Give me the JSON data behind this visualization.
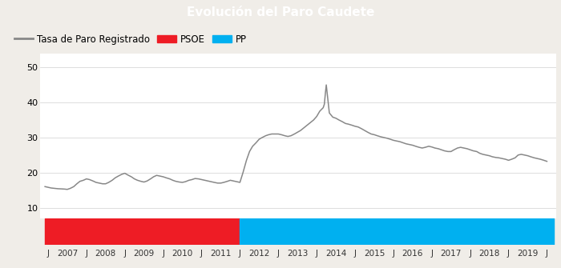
{
  "title": "Evolución del Paro Caudete",
  "title_bg": "#4e7fc4",
  "title_color": "#ffffff",
  "ylabel_values": [
    10,
    20,
    30,
    40,
    50
  ],
  "ylim": [
    7,
    54
  ],
  "legend_line_label": "Tasa de Paro Registrado",
  "legend_psoe_label": "PSOE",
  "legend_pp_label": "PP",
  "psoe_color": "#ee1c25",
  "pp_color": "#00b0f0",
  "line_color": "#888888",
  "background_color": "#ffffff",
  "grid_color": "#d0d0d0",
  "outer_bg": "#f0ede8",
  "psoe_start": 2006.42,
  "psoe_end": 2011.5,
  "pp_start": 2011.5,
  "pp_end": 2019.67,
  "xlim_left": 2006.3,
  "xlim_right": 2019.75,
  "x_tick_positions": [
    2006.5,
    2007.0,
    2007.5,
    2008.0,
    2008.5,
    2009.0,
    2009.5,
    2010.0,
    2010.5,
    2011.0,
    2011.5,
    2012.0,
    2012.5,
    2013.0,
    2013.5,
    2014.0,
    2014.5,
    2015.0,
    2015.5,
    2016.0,
    2016.5,
    2017.0,
    2017.5,
    2018.0,
    2018.5,
    2019.0,
    2019.5
  ],
  "x_tick_labels": [
    "J",
    "2007",
    "J",
    "2008",
    "J",
    "2009",
    "J",
    "2010",
    "J",
    "2011",
    "J",
    "2012",
    "J",
    "2013",
    "J",
    "2014",
    "J",
    "2015",
    "J",
    "2016",
    "J",
    "2017",
    "J",
    "2018",
    "J",
    "2019",
    "J"
  ],
  "series": [
    [
      2006.42,
      16.0
    ],
    [
      2006.58,
      15.6
    ],
    [
      2006.75,
      15.4
    ],
    [
      2006.92,
      15.3
    ],
    [
      2007.0,
      15.2
    ],
    [
      2007.08,
      15.5
    ],
    [
      2007.17,
      16.0
    ],
    [
      2007.25,
      16.8
    ],
    [
      2007.33,
      17.5
    ],
    [
      2007.42,
      17.8
    ],
    [
      2007.5,
      18.2
    ],
    [
      2007.58,
      18.0
    ],
    [
      2007.67,
      17.6
    ],
    [
      2007.75,
      17.2
    ],
    [
      2007.83,
      17.0
    ],
    [
      2007.92,
      16.8
    ],
    [
      2008.0,
      16.8
    ],
    [
      2008.08,
      17.2
    ],
    [
      2008.17,
      17.8
    ],
    [
      2008.25,
      18.5
    ],
    [
      2008.33,
      19.0
    ],
    [
      2008.42,
      19.5
    ],
    [
      2008.5,
      19.8
    ],
    [
      2008.58,
      19.3
    ],
    [
      2008.67,
      18.8
    ],
    [
      2008.75,
      18.2
    ],
    [
      2008.83,
      17.8
    ],
    [
      2008.92,
      17.5
    ],
    [
      2009.0,
      17.3
    ],
    [
      2009.08,
      17.6
    ],
    [
      2009.17,
      18.2
    ],
    [
      2009.25,
      18.8
    ],
    [
      2009.33,
      19.2
    ],
    [
      2009.42,
      19.0
    ],
    [
      2009.5,
      18.8
    ],
    [
      2009.58,
      18.5
    ],
    [
      2009.67,
      18.2
    ],
    [
      2009.75,
      17.8
    ],
    [
      2009.83,
      17.5
    ],
    [
      2009.92,
      17.3
    ],
    [
      2010.0,
      17.2
    ],
    [
      2010.08,
      17.4
    ],
    [
      2010.17,
      17.8
    ],
    [
      2010.25,
      18.0
    ],
    [
      2010.33,
      18.3
    ],
    [
      2010.42,
      18.2
    ],
    [
      2010.5,
      18.0
    ],
    [
      2010.58,
      17.8
    ],
    [
      2010.67,
      17.6
    ],
    [
      2010.75,
      17.4
    ],
    [
      2010.83,
      17.2
    ],
    [
      2010.92,
      17.0
    ],
    [
      2011.0,
      17.0
    ],
    [
      2011.08,
      17.2
    ],
    [
      2011.17,
      17.5
    ],
    [
      2011.25,
      17.8
    ],
    [
      2011.33,
      17.6
    ],
    [
      2011.42,
      17.4
    ],
    [
      2011.5,
      17.2
    ],
    [
      2011.58,
      20.0
    ],
    [
      2011.67,
      23.5
    ],
    [
      2011.75,
      26.0
    ],
    [
      2011.83,
      27.5
    ],
    [
      2011.92,
      28.5
    ],
    [
      2012.0,
      29.5
    ],
    [
      2012.08,
      30.0
    ],
    [
      2012.17,
      30.5
    ],
    [
      2012.25,
      30.8
    ],
    [
      2012.33,
      31.0
    ],
    [
      2012.42,
      31.0
    ],
    [
      2012.5,
      31.0
    ],
    [
      2012.58,
      30.8
    ],
    [
      2012.67,
      30.5
    ],
    [
      2012.75,
      30.3
    ],
    [
      2012.83,
      30.5
    ],
    [
      2012.92,
      31.0
    ],
    [
      2013.0,
      31.5
    ],
    [
      2013.08,
      32.0
    ],
    [
      2013.17,
      32.8
    ],
    [
      2013.25,
      33.5
    ],
    [
      2013.33,
      34.2
    ],
    [
      2013.42,
      35.0
    ],
    [
      2013.5,
      36.0
    ],
    [
      2013.58,
      37.5
    ],
    [
      2013.67,
      38.5
    ],
    [
      2013.7,
      39.5
    ],
    [
      2013.73,
      43.0
    ],
    [
      2013.75,
      45.0
    ],
    [
      2013.78,
      42.0
    ],
    [
      2013.83,
      37.0
    ],
    [
      2013.92,
      35.8
    ],
    [
      2014.0,
      35.5
    ],
    [
      2014.08,
      35.0
    ],
    [
      2014.17,
      34.5
    ],
    [
      2014.25,
      34.0
    ],
    [
      2014.33,
      33.8
    ],
    [
      2014.42,
      33.5
    ],
    [
      2014.5,
      33.2
    ],
    [
      2014.58,
      33.0
    ],
    [
      2014.67,
      32.5
    ],
    [
      2014.75,
      32.0
    ],
    [
      2014.83,
      31.5
    ],
    [
      2014.92,
      31.0
    ],
    [
      2015.0,
      30.8
    ],
    [
      2015.08,
      30.5
    ],
    [
      2015.17,
      30.2
    ],
    [
      2015.25,
      30.0
    ],
    [
      2015.33,
      29.8
    ],
    [
      2015.42,
      29.5
    ],
    [
      2015.5,
      29.2
    ],
    [
      2015.58,
      29.0
    ],
    [
      2015.67,
      28.8
    ],
    [
      2015.75,
      28.5
    ],
    [
      2015.83,
      28.2
    ],
    [
      2015.92,
      28.0
    ],
    [
      2016.0,
      27.8
    ],
    [
      2016.08,
      27.5
    ],
    [
      2016.17,
      27.2
    ],
    [
      2016.25,
      27.0
    ],
    [
      2016.33,
      27.2
    ],
    [
      2016.42,
      27.5
    ],
    [
      2016.5,
      27.3
    ],
    [
      2016.58,
      27.0
    ],
    [
      2016.67,
      26.8
    ],
    [
      2016.75,
      26.5
    ],
    [
      2016.83,
      26.2
    ],
    [
      2016.92,
      26.0
    ],
    [
      2017.0,
      26.0
    ],
    [
      2017.08,
      26.5
    ],
    [
      2017.17,
      27.0
    ],
    [
      2017.25,
      27.2
    ],
    [
      2017.33,
      27.0
    ],
    [
      2017.42,
      26.8
    ],
    [
      2017.5,
      26.5
    ],
    [
      2017.58,
      26.2
    ],
    [
      2017.67,
      26.0
    ],
    [
      2017.75,
      25.5
    ],
    [
      2017.83,
      25.2
    ],
    [
      2017.92,
      25.0
    ],
    [
      2018.0,
      24.8
    ],
    [
      2018.08,
      24.5
    ],
    [
      2018.17,
      24.3
    ],
    [
      2018.25,
      24.2
    ],
    [
      2018.33,
      24.0
    ],
    [
      2018.42,
      23.8
    ],
    [
      2018.5,
      23.5
    ],
    [
      2018.58,
      23.8
    ],
    [
      2018.67,
      24.2
    ],
    [
      2018.75,
      25.0
    ],
    [
      2018.83,
      25.2
    ],
    [
      2018.92,
      25.0
    ],
    [
      2019.0,
      24.8
    ],
    [
      2019.08,
      24.5
    ],
    [
      2019.17,
      24.2
    ],
    [
      2019.25,
      24.0
    ],
    [
      2019.33,
      23.8
    ],
    [
      2019.42,
      23.5
    ],
    [
      2019.5,
      23.2
    ]
  ]
}
